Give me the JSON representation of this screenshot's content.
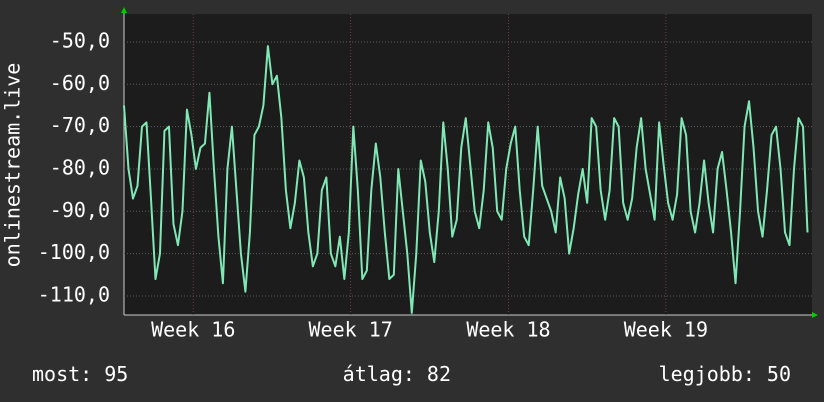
{
  "chart_data": {
    "type": "line",
    "y_label": "onlinestream.live",
    "ylim": [
      -114.5,
      -43.4
    ],
    "yticks": [
      {
        "value": -50,
        "label": "-50,0"
      },
      {
        "value": -60,
        "label": "-60,0"
      },
      {
        "value": -70,
        "label": "-70,0"
      },
      {
        "value": -80,
        "label": "-80,0"
      },
      {
        "value": -90,
        "label": "-90,0"
      },
      {
        "value": -100,
        "label": "-100,0"
      },
      {
        "value": -110,
        "label": "-110,0"
      }
    ],
    "xlim": [
      0,
      153
    ],
    "xticks": [
      {
        "value": 15.4,
        "label": "Week 16"
      },
      {
        "value": 50.4,
        "label": "Week 17"
      },
      {
        "value": 85.5,
        "label": "Week 18"
      },
      {
        "value": 120.5,
        "label": "Week 19"
      }
    ],
    "grid": true,
    "color": "#7fe8b4",
    "values": [
      -65,
      -80,
      -87,
      -84,
      -70,
      -69,
      -87,
      -106,
      -100,
      -71,
      -70,
      -93,
      -98,
      -90,
      -66,
      -72,
      -80,
      -75,
      -74,
      -62,
      -80,
      -96,
      -107,
      -80,
      -70,
      -85,
      -100,
      -109,
      -95,
      -72,
      -70,
      -65,
      -51,
      -60,
      -58,
      -68,
      -85,
      -94,
      -88,
      -78,
      -82,
      -95,
      -103,
      -100,
      -85,
      -82,
      -100,
      -103,
      -96,
      -106,
      -95,
      -70,
      -85,
      -106,
      -104,
      -85,
      -74,
      -82,
      -95,
      -106,
      -105,
      -80,
      -90,
      -100,
      -114,
      -100,
      -78,
      -83,
      -95,
      -102,
      -90,
      -69,
      -80,
      -96,
      -92,
      -75,
      -68,
      -79,
      -90,
      -94,
      -85,
      -69,
      -75,
      -90,
      -92,
      -80,
      -74,
      -70,
      -85,
      -96,
      -98,
      -85,
      -70,
      -84,
      -87,
      -90,
      -95,
      -82,
      -87,
      -100,
      -94,
      -86,
      -80,
      -88,
      -68,
      -70,
      -85,
      -92,
      -85,
      -68,
      -70,
      -88,
      -92,
      -87,
      -75,
      -68,
      -80,
      -86,
      -92,
      -69,
      -79,
      -88,
      -92,
      -86,
      -68,
      -72,
      -90,
      -95,
      -88,
      -78,
      -88,
      -95,
      -80,
      -76,
      -85,
      -95,
      -107,
      -90,
      -70,
      -64,
      -75,
      -90,
      -96,
      -85,
      -72,
      -70,
      -80,
      -95,
      -98,
      -80,
      -68,
      -70,
      -95
    ],
    "footer": [
      {
        "label": "most:",
        "value": 95
      },
      {
        "label": "átlag:",
        "value": 82
      },
      {
        "label": "legjobb:",
        "value": 50
      }
    ]
  }
}
